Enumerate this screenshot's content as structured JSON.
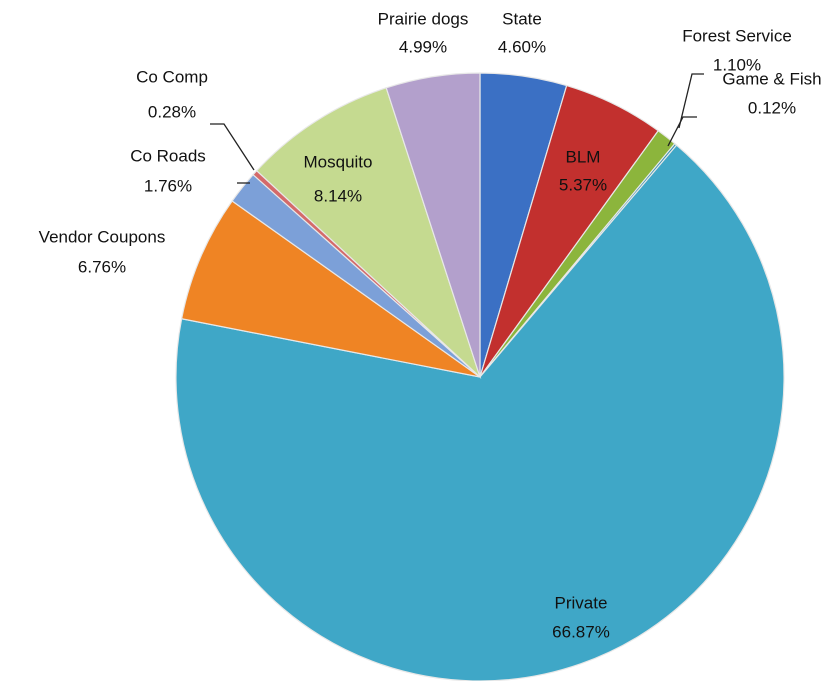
{
  "chart_data": {
    "type": "pie",
    "categories": [
      "State",
      "BLM",
      "Forest Service",
      "Game & Fish",
      "Private",
      "Vendor Coupons",
      "Co Roads",
      "Co Comp",
      "Mosquito",
      "Prairie dogs"
    ],
    "values": [
      4.6,
      5.37,
      1.1,
      0.12,
      66.87,
      6.76,
      1.76,
      0.28,
      8.14,
      4.99
    ],
    "value_labels": [
      "4.60%",
      "5.37%",
      "1.10%",
      "0.12%",
      "66.87%",
      "6.76%",
      "1.76%",
      "0.28%",
      "8.14%",
      "4.99%"
    ],
    "colors": [
      "#3b70c4",
      "#c2302e",
      "#8cb53c",
      "#2f8fae",
      "#3fa7c7",
      "#ef8424",
      "#7ca0d8",
      "#d46a6a",
      "#c5da90",
      "#b3a0cc"
    ]
  }
}
